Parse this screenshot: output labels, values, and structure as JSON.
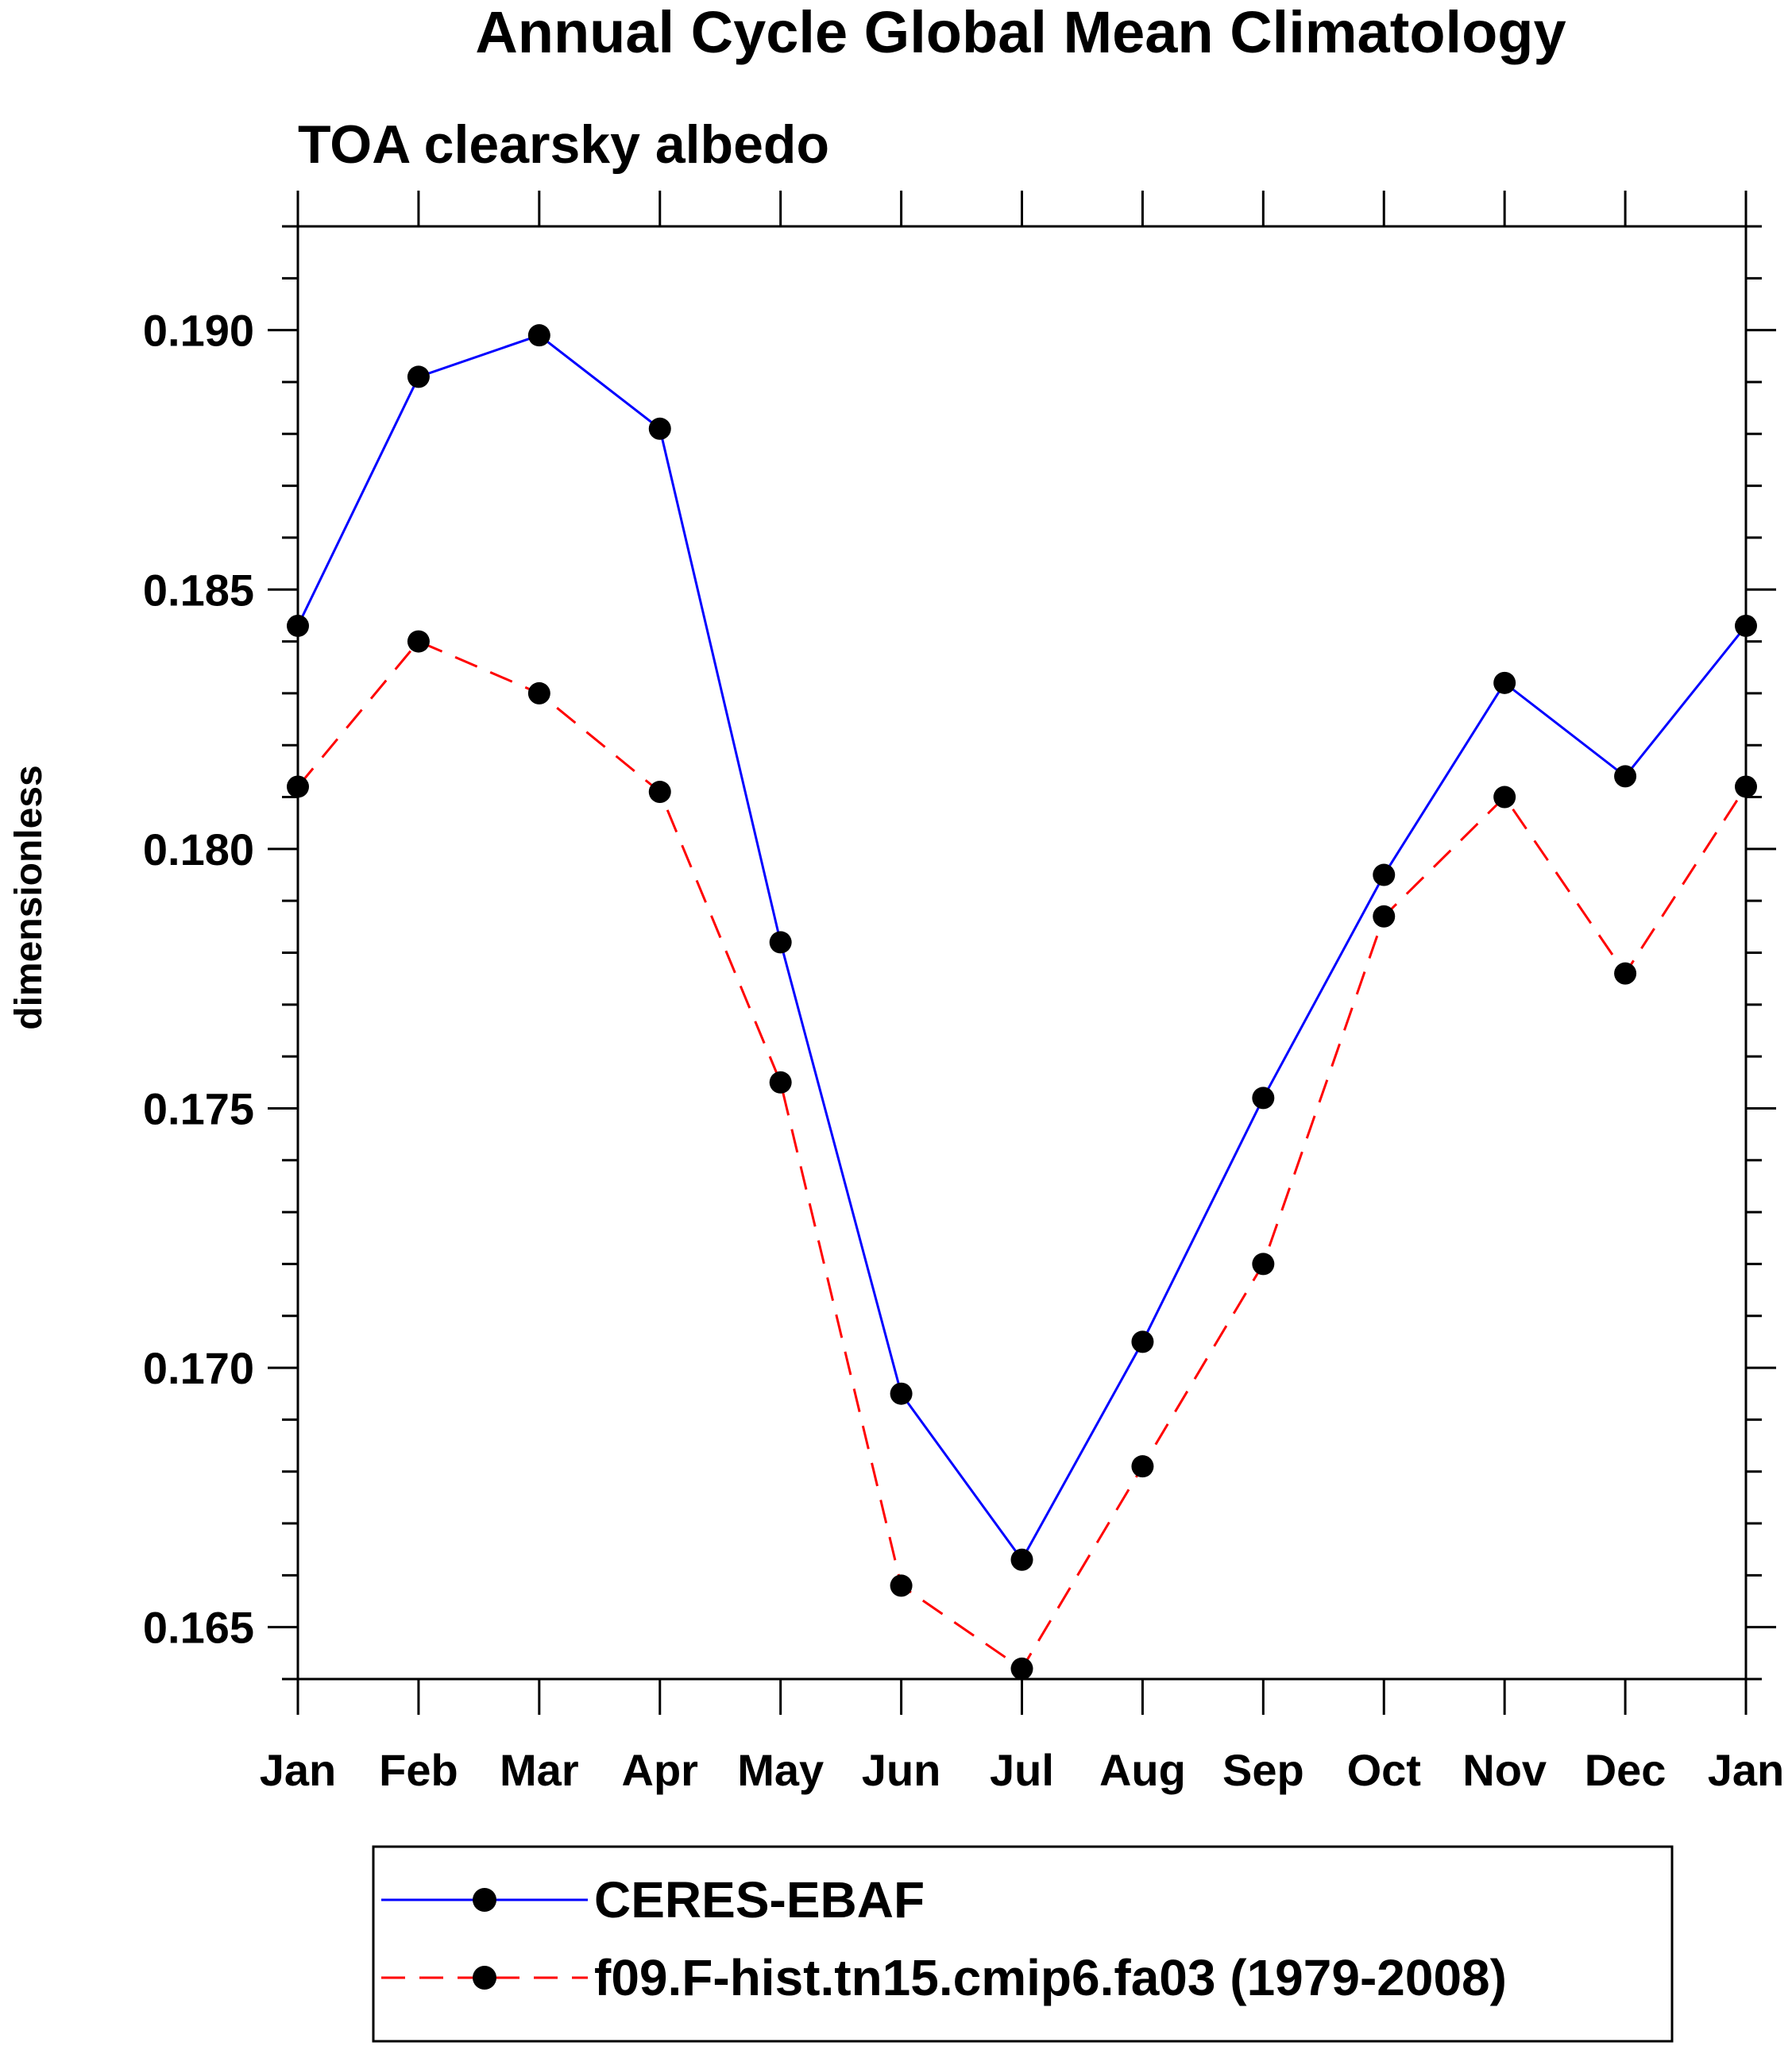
{
  "chart_data": {
    "type": "line",
    "title": "Annual Cycle Global Mean Climatology",
    "subtitle": "TOA clearsky albedo",
    "xlabel": "",
    "ylabel": "dimensionless",
    "categories": [
      "Jan",
      "Feb",
      "Mar",
      "Apr",
      "May",
      "Jun",
      "Jul",
      "Aug",
      "Sep",
      "Oct",
      "Nov",
      "Dec",
      "Jan"
    ],
    "ylim": [
      0.164,
      0.192
    ],
    "yticks": [
      0.165,
      0.17,
      0.175,
      0.18,
      0.185,
      0.19
    ],
    "ytick_labels": [
      "0.165",
      "0.170",
      "0.175",
      "0.180",
      "0.185",
      "0.190"
    ],
    "ytick_minor_step": 0.001,
    "series": [
      {
        "name": "CERES-EBAF",
        "color": "#0000ff",
        "dash": "solid",
        "marker": "circle",
        "values": [
          0.1843,
          0.1891,
          0.1899,
          0.1881,
          0.1782,
          0.1695,
          0.1663,
          0.1705,
          0.1752,
          0.1795,
          0.1832,
          0.1814,
          0.1843
        ]
      },
      {
        "name": "f09.F-hist.tn15.cmip6.fa03 (1979-2008)",
        "color": "#ff0000",
        "dash": "dashed",
        "marker": "circle",
        "values": [
          0.1812,
          0.184,
          0.183,
          0.1811,
          0.1755,
          0.1658,
          0.1642,
          0.1681,
          0.172,
          0.1787,
          0.181,
          0.1776,
          0.1812
        ]
      }
    ],
    "legend_position": "bottom",
    "grid": false
  }
}
